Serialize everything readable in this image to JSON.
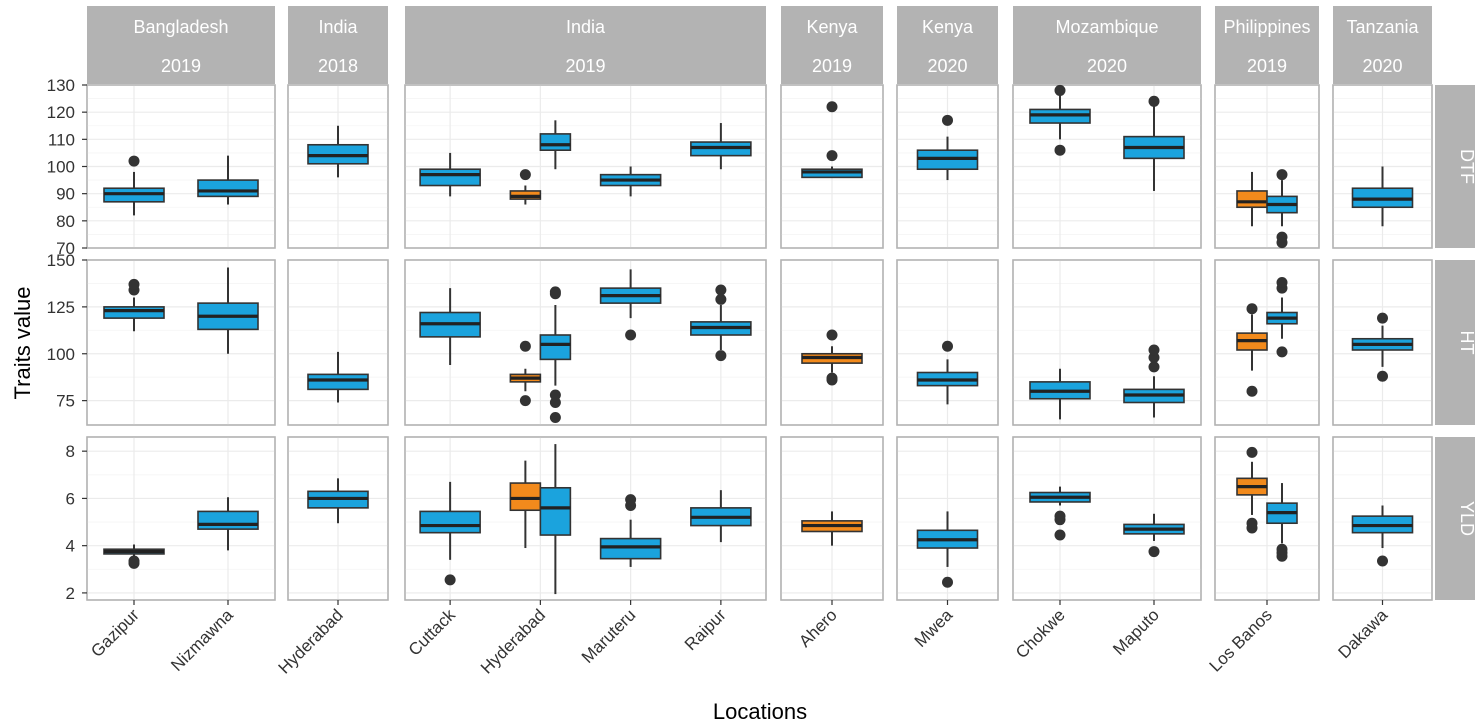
{
  "chart_data": {
    "type": "boxplot",
    "xlabel": "Locations",
    "ylabel": "Traits value",
    "colors": {
      "blue": "#1ba3dd",
      "orange": "#f28a1c",
      "strip": "#b3b3b3"
    },
    "columns": [
      {
        "country": "Bangladesh",
        "year": "2019",
        "locations": [
          "Gazipur",
          "Nizmawna"
        ]
      },
      {
        "country": "India",
        "year": "2018",
        "locations": [
          "Hyderabad"
        ]
      },
      {
        "country": "India",
        "year": "2019",
        "locations": [
          "Cuttack",
          "Hyderabad",
          "Maruteru",
          "Raipur"
        ]
      },
      {
        "country": "Kenya",
        "year": "2019",
        "locations": [
          "Ahero"
        ]
      },
      {
        "country": "Kenya",
        "year": "2020",
        "locations": [
          "Mwea"
        ]
      },
      {
        "country": "Mozambique",
        "year": "2020",
        "locations": [
          "Chokwe",
          "Maputo"
        ]
      },
      {
        "country": "Philippines",
        "year": "2019",
        "locations": [
          "Los Banos"
        ]
      },
      {
        "country": "Tanzania",
        "year": "2020",
        "locations": [
          "Dakawa"
        ]
      }
    ],
    "rows": [
      {
        "trait": "DTF",
        "ylim": [
          70,
          130
        ],
        "ticks": [
          70,
          80,
          90,
          100,
          110,
          120,
          130
        ],
        "boxes": [
          {
            "col": 0,
            "loc": 0,
            "pos": 0,
            "n": 1,
            "color": "blue",
            "q1": 87,
            "med": 90,
            "q3": 92,
            "wlo": 82,
            "whi": 98,
            "out": [
              102
            ]
          },
          {
            "col": 0,
            "loc": 1,
            "pos": 0,
            "n": 1,
            "color": "blue",
            "q1": 89,
            "med": 91,
            "q3": 95,
            "wlo": 86,
            "whi": 104,
            "out": []
          },
          {
            "col": 1,
            "loc": 0,
            "pos": 0,
            "n": 1,
            "color": "blue",
            "q1": 101,
            "med": 104,
            "q3": 108,
            "wlo": 96,
            "whi": 115,
            "out": []
          },
          {
            "col": 2,
            "loc": 0,
            "pos": 0,
            "n": 1,
            "color": "blue",
            "q1": 93,
            "med": 97,
            "q3": 99,
            "wlo": 89,
            "whi": 105,
            "out": []
          },
          {
            "col": 2,
            "loc": 1,
            "pos": 0,
            "n": 2,
            "color": "orange",
            "q1": 88,
            "med": 89,
            "q3": 91,
            "wlo": 86,
            "whi": 93,
            "out": [
              97
            ]
          },
          {
            "col": 2,
            "loc": 1,
            "pos": 1,
            "n": 2,
            "color": "blue",
            "q1": 106,
            "med": 108,
            "q3": 112,
            "wlo": 99,
            "whi": 117,
            "out": []
          },
          {
            "col": 2,
            "loc": 2,
            "pos": 0,
            "n": 1,
            "color": "blue",
            "q1": 93,
            "med": 95,
            "q3": 97,
            "wlo": 89,
            "whi": 100,
            "out": []
          },
          {
            "col": 2,
            "loc": 3,
            "pos": 0,
            "n": 1,
            "color": "blue",
            "q1": 104,
            "med": 107,
            "q3": 109,
            "wlo": 99,
            "whi": 116,
            "out": []
          },
          {
            "col": 3,
            "loc": 0,
            "pos": 0,
            "n": 1,
            "color": "blue",
            "q1": 96,
            "med": 98,
            "q3": 99,
            "wlo": 96,
            "whi": 100,
            "out": [
              104,
              122
            ]
          },
          {
            "col": 4,
            "loc": 0,
            "pos": 0,
            "n": 1,
            "color": "blue",
            "q1": 99,
            "med": 103,
            "q3": 106,
            "wlo": 95,
            "whi": 111,
            "out": [
              117
            ]
          },
          {
            "col": 5,
            "loc": 0,
            "pos": 0,
            "n": 1,
            "color": "blue",
            "q1": 116,
            "med": 119,
            "q3": 121,
            "wlo": 110,
            "whi": 127,
            "out": [
              106,
              128
            ]
          },
          {
            "col": 5,
            "loc": 1,
            "pos": 0,
            "n": 1,
            "color": "blue",
            "q1": 103,
            "med": 107,
            "q3": 111,
            "wlo": 91,
            "whi": 123,
            "out": [
              124
            ]
          },
          {
            "col": 6,
            "loc": 0,
            "pos": 0,
            "n": 2,
            "color": "orange",
            "q1": 85,
            "med": 87,
            "q3": 91,
            "wlo": 78,
            "whi": 98,
            "out": []
          },
          {
            "col": 6,
            "loc": 0,
            "pos": 1,
            "n": 2,
            "color": "blue",
            "q1": 83,
            "med": 86,
            "q3": 89,
            "wlo": 78,
            "whi": 95,
            "out": [
              72,
              74,
              97
            ]
          },
          {
            "col": 7,
            "loc": 0,
            "pos": 0,
            "n": 1,
            "color": "blue",
            "q1": 85,
            "med": 88,
            "q3": 92,
            "wlo": 78,
            "whi": 100,
            "out": []
          }
        ]
      },
      {
        "trait": "HT",
        "ylim": [
          62,
          150
        ],
        "ticks": [
          75,
          100,
          125,
          150
        ],
        "boxes": [
          {
            "col": 0,
            "loc": 0,
            "pos": 0,
            "n": 1,
            "color": "blue",
            "q1": 119,
            "med": 123,
            "q3": 125,
            "wlo": 112,
            "whi": 130,
            "out": [
              134,
              137
            ]
          },
          {
            "col": 0,
            "loc": 1,
            "pos": 0,
            "n": 1,
            "color": "blue",
            "q1": 113,
            "med": 120,
            "q3": 127,
            "wlo": 100,
            "whi": 146,
            "out": []
          },
          {
            "col": 1,
            "loc": 0,
            "pos": 0,
            "n": 1,
            "color": "blue",
            "q1": 81,
            "med": 86,
            "q3": 89,
            "wlo": 74,
            "whi": 101,
            "out": []
          },
          {
            "col": 2,
            "loc": 0,
            "pos": 0,
            "n": 1,
            "color": "blue",
            "q1": 109,
            "med": 116,
            "q3": 122,
            "wlo": 94,
            "whi": 135,
            "out": []
          },
          {
            "col": 2,
            "loc": 1,
            "pos": 0,
            "n": 2,
            "color": "orange",
            "q1": 85,
            "med": 87,
            "q3": 89,
            "wlo": 80,
            "whi": 92,
            "out": [
              75,
              104
            ]
          },
          {
            "col": 2,
            "loc": 1,
            "pos": 1,
            "n": 2,
            "color": "blue",
            "q1": 97,
            "med": 105,
            "q3": 110,
            "wlo": 83,
            "whi": 126,
            "out": [
              66,
              74,
              78,
              132,
              133
            ]
          },
          {
            "col": 2,
            "loc": 2,
            "pos": 0,
            "n": 1,
            "color": "blue",
            "q1": 127,
            "med": 131,
            "q3": 135,
            "wlo": 119,
            "whi": 145,
            "out": [
              110
            ]
          },
          {
            "col": 2,
            "loc": 3,
            "pos": 0,
            "n": 1,
            "color": "blue",
            "q1": 110,
            "med": 114,
            "q3": 117,
            "wlo": 102,
            "whi": 126,
            "out": [
              99,
              129,
              134
            ]
          },
          {
            "col": 3,
            "loc": 0,
            "pos": 0,
            "n": 1,
            "color": "orange",
            "q1": 95,
            "med": 98,
            "q3": 100,
            "wlo": 90,
            "whi": 104,
            "out": [
              86,
              87,
              110
            ]
          },
          {
            "col": 4,
            "loc": 0,
            "pos": 0,
            "n": 1,
            "color": "blue",
            "q1": 83,
            "med": 86,
            "q3": 90,
            "wlo": 73,
            "whi": 97,
            "out": [
              104
            ]
          },
          {
            "col": 5,
            "loc": 0,
            "pos": 0,
            "n": 1,
            "color": "blue",
            "q1": 76,
            "med": 80,
            "q3": 85,
            "wlo": 65,
            "whi": 92,
            "out": []
          },
          {
            "col": 5,
            "loc": 1,
            "pos": 0,
            "n": 1,
            "color": "blue",
            "q1": 74,
            "med": 78,
            "q3": 81,
            "wlo": 66,
            "whi": 88,
            "out": [
              93,
              98,
              102
            ]
          },
          {
            "col": 6,
            "loc": 0,
            "pos": 0,
            "n": 2,
            "color": "orange",
            "q1": 102,
            "med": 107,
            "q3": 111,
            "wlo": 91,
            "whi": 121,
            "out": [
              80,
              124
            ]
          },
          {
            "col": 6,
            "loc": 0,
            "pos": 1,
            "n": 2,
            "color": "blue",
            "q1": 116,
            "med": 119,
            "q3": 122,
            "wlo": 108,
            "whi": 130,
            "out": [
              101,
              135,
              138
            ]
          },
          {
            "col": 7,
            "loc": 0,
            "pos": 0,
            "n": 1,
            "color": "blue",
            "q1": 102,
            "med": 105,
            "q3": 108,
            "wlo": 93,
            "whi": 115,
            "out": [
              88,
              119
            ]
          }
        ]
      },
      {
        "trait": "YLD",
        "ylim": [
          1.7,
          8.6
        ],
        "ticks": [
          2,
          4,
          6,
          8
        ],
        "boxes": [
          {
            "col": 0,
            "loc": 0,
            "pos": 0,
            "n": 1,
            "color": "blue",
            "q1": 3.65,
            "med": 3.75,
            "q3": 3.85,
            "wlo": 3.5,
            "whi": 4.05,
            "out": [
              3.25,
              3.35
            ]
          },
          {
            "col": 0,
            "loc": 1,
            "pos": 0,
            "n": 1,
            "color": "blue",
            "q1": 4.7,
            "med": 4.9,
            "q3": 5.45,
            "wlo": 3.8,
            "whi": 6.05,
            "out": []
          },
          {
            "col": 1,
            "loc": 0,
            "pos": 0,
            "n": 1,
            "color": "blue",
            "q1": 5.6,
            "med": 6.0,
            "q3": 6.3,
            "wlo": 4.95,
            "whi": 6.85,
            "out": []
          },
          {
            "col": 2,
            "loc": 0,
            "pos": 0,
            "n": 1,
            "color": "blue",
            "q1": 4.55,
            "med": 4.85,
            "q3": 5.45,
            "wlo": 3.4,
            "whi": 6.7,
            "out": [
              2.55
            ]
          },
          {
            "col": 2,
            "loc": 1,
            "pos": 0,
            "n": 2,
            "color": "orange",
            "q1": 5.5,
            "med": 6.0,
            "q3": 6.65,
            "wlo": 3.9,
            "whi": 7.6,
            "out": []
          },
          {
            "col": 2,
            "loc": 1,
            "pos": 1,
            "n": 2,
            "color": "blue",
            "q1": 4.45,
            "med": 5.6,
            "q3": 6.45,
            "wlo": 1.95,
            "whi": 8.3,
            "out": []
          },
          {
            "col": 2,
            "loc": 2,
            "pos": 0,
            "n": 1,
            "color": "blue",
            "q1": 3.45,
            "med": 3.95,
            "q3": 4.3,
            "wlo": 3.1,
            "whi": 5.1,
            "out": [
              5.7,
              5.95
            ]
          },
          {
            "col": 2,
            "loc": 3,
            "pos": 0,
            "n": 1,
            "color": "blue",
            "q1": 4.85,
            "med": 5.2,
            "q3": 5.6,
            "wlo": 4.15,
            "whi": 6.35,
            "out": []
          },
          {
            "col": 3,
            "loc": 0,
            "pos": 0,
            "n": 1,
            "color": "orange",
            "q1": 4.6,
            "med": 4.85,
            "q3": 5.05,
            "wlo": 4.0,
            "whi": 5.45,
            "out": []
          },
          {
            "col": 4,
            "loc": 0,
            "pos": 0,
            "n": 1,
            "color": "blue",
            "q1": 3.9,
            "med": 4.25,
            "q3": 4.65,
            "wlo": 3.1,
            "whi": 5.45,
            "out": [
              2.45
            ]
          },
          {
            "col": 5,
            "loc": 0,
            "pos": 0,
            "n": 1,
            "color": "blue",
            "q1": 5.85,
            "med": 6.05,
            "q3": 6.25,
            "wlo": 5.7,
            "whi": 6.5,
            "out": [
              4.45,
              5.1,
              5.25
            ]
          },
          {
            "col": 5,
            "loc": 1,
            "pos": 0,
            "n": 1,
            "color": "blue",
            "q1": 4.5,
            "med": 4.7,
            "q3": 4.9,
            "wlo": 4.2,
            "whi": 5.35,
            "out": [
              3.75
            ]
          },
          {
            "col": 6,
            "loc": 0,
            "pos": 0,
            "n": 2,
            "color": "orange",
            "q1": 6.15,
            "med": 6.5,
            "q3": 6.85,
            "wlo": 5.3,
            "whi": 7.55,
            "out": [
              4.75,
              4.95,
              7.95
            ]
          },
          {
            "col": 6,
            "loc": 0,
            "pos": 1,
            "n": 2,
            "color": "blue",
            "q1": 4.95,
            "med": 5.4,
            "q3": 5.8,
            "wlo": 4.1,
            "whi": 6.65,
            "out": [
              3.55,
              3.7,
              3.85
            ]
          },
          {
            "col": 7,
            "loc": 0,
            "pos": 0,
            "n": 1,
            "color": "blue",
            "q1": 4.55,
            "med": 4.85,
            "q3": 5.25,
            "wlo": 3.9,
            "whi": 5.7,
            "out": [
              3.35
            ]
          }
        ]
      }
    ]
  }
}
